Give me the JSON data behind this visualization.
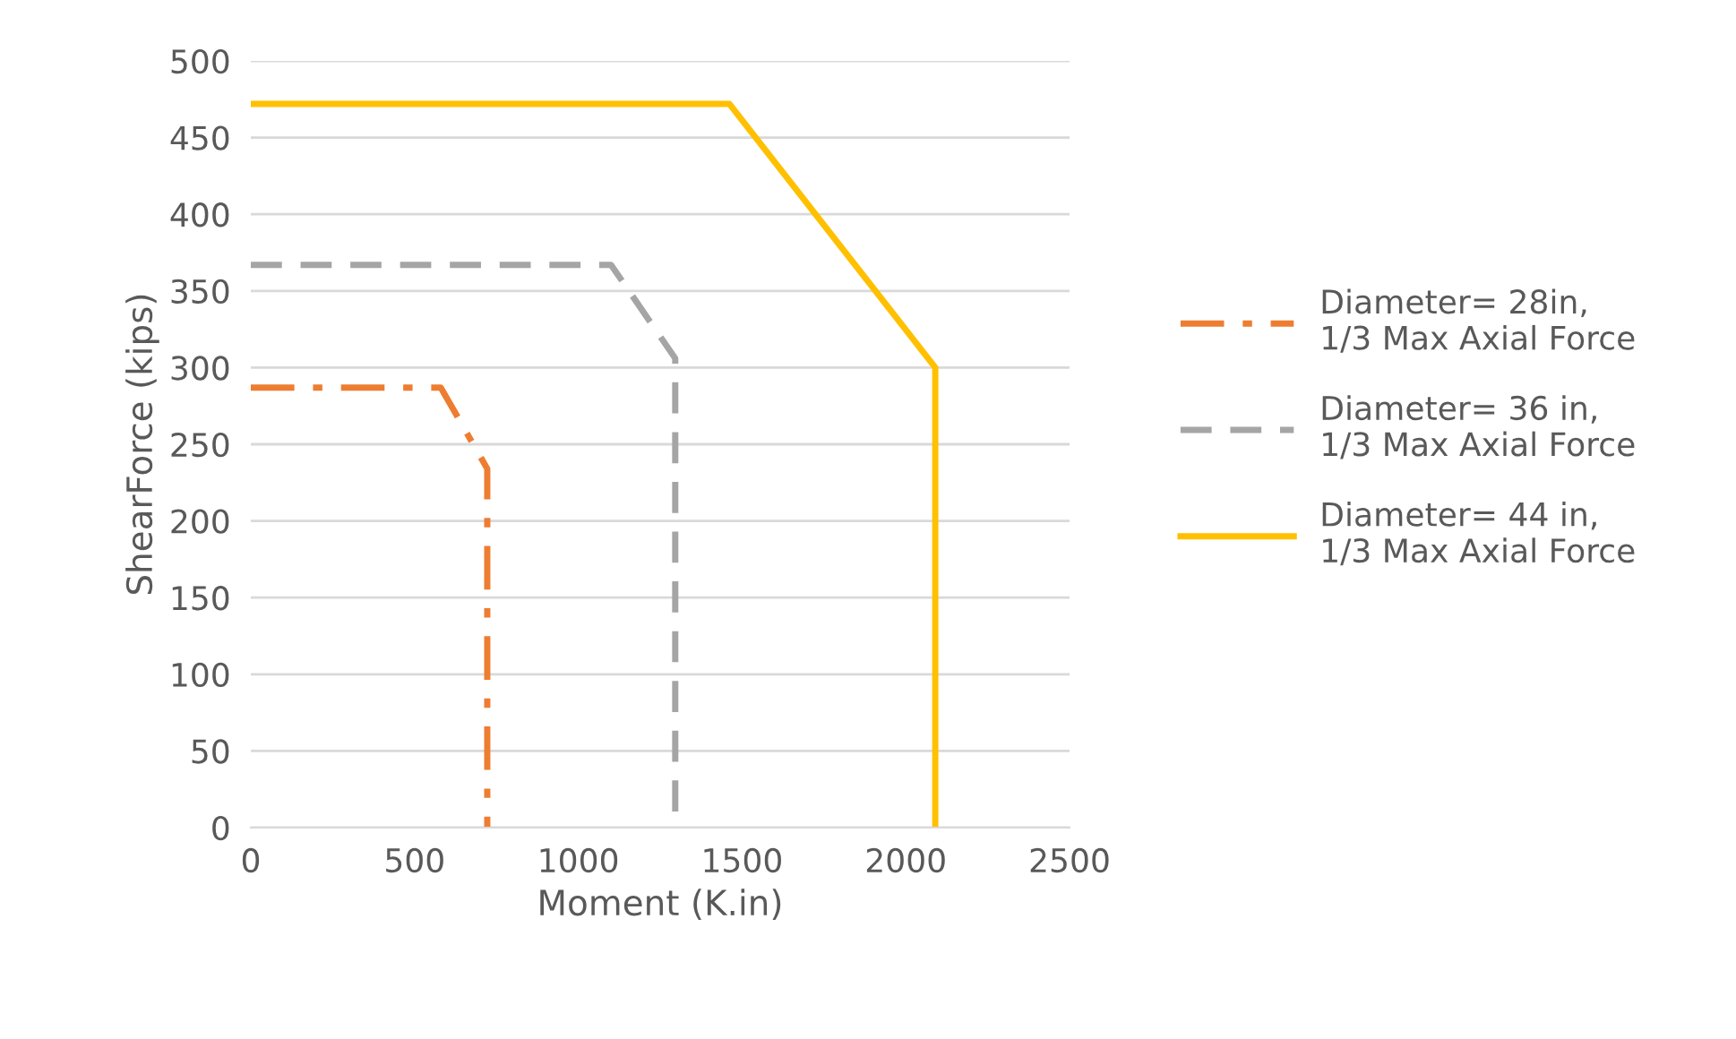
{
  "chart_data": {
    "type": "line",
    "xlabel": "Moment (K.in)",
    "ylabel": "ShearForce (kips)",
    "xlim": [
      0,
      2500
    ],
    "xticks": [
      0,
      500,
      1000,
      1500,
      2000,
      2500
    ],
    "ylim": [
      0,
      500
    ],
    "yticks": [
      0,
      50,
      100,
      150,
      200,
      250,
      300,
      350,
      400,
      450,
      500
    ],
    "grid": "y",
    "legend": "right",
    "marker": "none",
    "series": [
      {
        "name": "Diameter= 28in,1/3 Max Axial Force",
        "color": "#ed7d31",
        "line_style": "dashdot",
        "x": [
          0,
          580,
          722,
          722
        ],
        "values": [
          287,
          287,
          234,
          0
        ]
      },
      {
        "name": "Diameter= 36 in,1/3 Max Axial Force",
        "color": "#a5a5a5",
        "line_style": "dashed",
        "x": [
          0,
          1100,
          1296,
          1296
        ],
        "values": [
          367,
          367,
          306,
          0
        ]
      },
      {
        "name": "Diameter= 44 in, 1/3 Max Axial Force",
        "color": "#ffc000",
        "line_style": "solid",
        "x": [
          0,
          1461,
          2090,
          2090
        ],
        "values": [
          472,
          472,
          300,
          0
        ]
      }
    ]
  }
}
